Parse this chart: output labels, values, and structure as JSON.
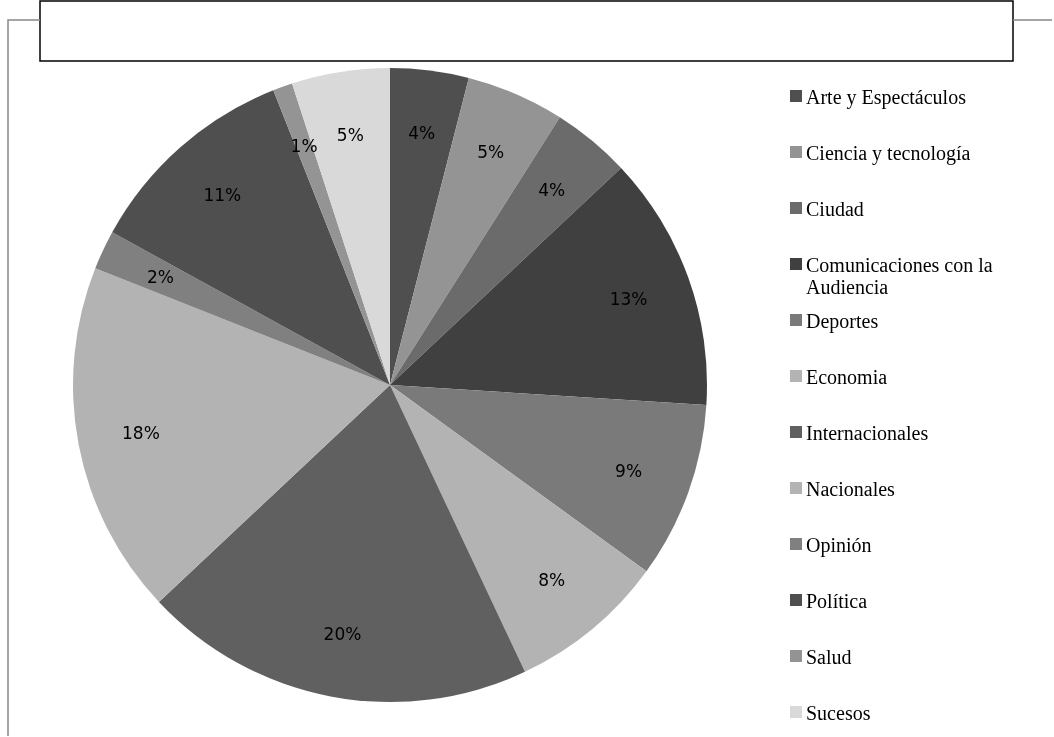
{
  "chart_data": {
    "type": "pie",
    "categories": [
      "Arte y Espectáculos",
      "Ciencia y tecnología",
      "Ciudad",
      "Comunicaciones con la Audiencia",
      "Deportes",
      "Economia",
      "Internacionales",
      "Nacionales",
      "Opinión",
      "Política",
      "Salud",
      "Sucesos"
    ],
    "values": [
      4,
      5,
      4,
      13,
      9,
      8,
      20,
      18,
      2,
      11,
      1,
      5
    ],
    "value_labels": [
      "4%",
      "5%",
      "4%",
      "13%",
      "9%",
      "8%",
      "20%",
      "18%",
      "2%",
      "11%",
      "1%",
      "5%"
    ],
    "colors": [
      "#4f4f4f",
      "#949494",
      "#6b6b6b",
      "#404040",
      "#7a7a7a",
      "#b3b3b3",
      "#606060",
      "#b3b3b3",
      "#808080",
      "#4f4f4f",
      "#949494",
      "#d9d9d9"
    ],
    "legend": "right"
  }
}
